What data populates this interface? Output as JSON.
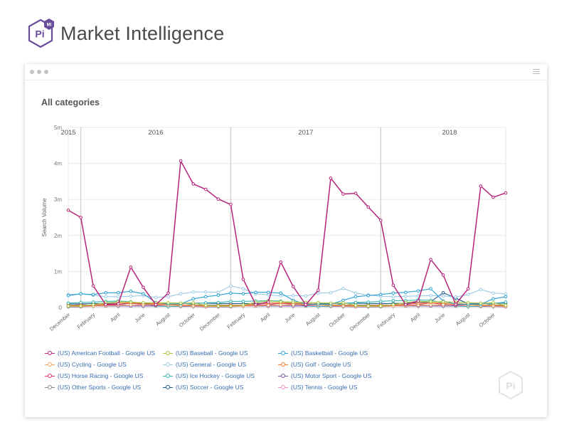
{
  "brand": {
    "logo_text": "Pi",
    "logo_badge": "MI",
    "name": "Market Intelligence"
  },
  "window": {
    "title": "All categories",
    "watermark": "Pi"
  },
  "colors": {
    "brand_purple": "#6a4c9c",
    "grid": "#e6e6e6",
    "year_line": "#cfcfcf"
  },
  "chart_data": {
    "type": "line",
    "ylabel": "Search Volume",
    "ylim": [
      0,
      5000000
    ],
    "y_ticks": [
      "0",
      "1m",
      "2m",
      "3m",
      "4m",
      "5m"
    ],
    "y_tick_values": [
      0,
      1000000,
      2000000,
      3000000,
      4000000,
      5000000
    ],
    "x": [
      "2015-12",
      "2016-01",
      "2016-02",
      "2016-03",
      "2016-04",
      "2016-05",
      "2016-06",
      "2016-07",
      "2016-08",
      "2016-09",
      "2016-10",
      "2016-11",
      "2016-12",
      "2017-01",
      "2017-02",
      "2017-03",
      "2017-04",
      "2017-05",
      "2017-06",
      "2017-07",
      "2017-08",
      "2017-09",
      "2017-10",
      "2017-11",
      "2017-12",
      "2018-01",
      "2018-02",
      "2018-03",
      "2018-04",
      "2018-05",
      "2018-06",
      "2018-07",
      "2018-08",
      "2018-09",
      "2018-10",
      "2018-11"
    ],
    "x_tick_labels": [
      {
        "label": "December",
        "index": 0
      },
      {
        "label": "February",
        "index": 2
      },
      {
        "label": "April",
        "index": 4
      },
      {
        "label": "June",
        "index": 6
      },
      {
        "label": "August",
        "index": 8
      },
      {
        "label": "October",
        "index": 10
      },
      {
        "label": "December",
        "index": 12
      },
      {
        "label": "February",
        "index": 14
      },
      {
        "label": "April",
        "index": 16
      },
      {
        "label": "June",
        "index": 18
      },
      {
        "label": "August",
        "index": 20
      },
      {
        "label": "October",
        "index": 22
      },
      {
        "label": "December",
        "index": 24
      },
      {
        "label": "February",
        "index": 26
      },
      {
        "label": "April",
        "index": 28
      },
      {
        "label": "June",
        "index": 30
      },
      {
        "label": "August",
        "index": 32
      },
      {
        "label": "October",
        "index": 34
      }
    ],
    "year_labels": [
      {
        "label": "2015",
        "index": 0
      },
      {
        "label": "2016",
        "index": 7
      },
      {
        "label": "2017",
        "index": 19
      },
      {
        "label": "2018",
        "index": 30.5
      }
    ],
    "year_boundaries": [
      1,
      13,
      25
    ],
    "series": [
      {
        "name": "(US) American Football - Google US",
        "color": "#b5247a",
        "values": [
          2700000,
          2500000,
          600000,
          80000,
          100000,
          1120000,
          560000,
          80000,
          400000,
          4070000,
          3430000,
          3280000,
          3010000,
          2860000,
          780000,
          80000,
          150000,
          1260000,
          580000,
          80000,
          480000,
          3590000,
          3150000,
          3170000,
          2790000,
          2420000,
          620000,
          80000,
          180000,
          1330000,
          900000,
          90000,
          520000,
          3370000,
          3060000,
          3180000
        ]
      },
      {
        "name": "(US) Baseball - Google US",
        "color": "#a6c43a",
        "values": [
          40000,
          40000,
          80000,
          130000,
          160000,
          150000,
          130000,
          130000,
          130000,
          120000,
          130000,
          60000,
          40000,
          40000,
          70000,
          140000,
          180000,
          160000,
          150000,
          140000,
          130000,
          120000,
          130000,
          60000,
          40000,
          40000,
          80000,
          140000,
          170000,
          160000,
          160000,
          150000,
          130000,
          120000,
          130000,
          60000
        ]
      },
      {
        "name": "(US) Basketball - Google US",
        "color": "#2a9fd0",
        "values": [
          330000,
          380000,
          360000,
          410000,
          410000,
          450000,
          380000,
          140000,
          100000,
          100000,
          240000,
          300000,
          340000,
          400000,
          380000,
          420000,
          420000,
          400000,
          200000,
          90000,
          90000,
          90000,
          200000,
          300000,
          330000,
          360000,
          400000,
          420000,
          460000,
          520000,
          180000,
          90000,
          90000,
          90000,
          240000,
          300000
        ]
      },
      {
        "name": "(US) Cycling - Google US",
        "color": "#f2a766",
        "values": [
          30000,
          30000,
          40000,
          50000,
          60000,
          70000,
          80000,
          90000,
          70000,
          50000,
          40000,
          30000,
          30000,
          30000,
          40000,
          50000,
          60000,
          70000,
          80000,
          90000,
          70000,
          50000,
          40000,
          30000,
          30000,
          30000,
          40000,
          50000,
          60000,
          70000,
          80000,
          90000,
          70000,
          50000,
          40000,
          30000
        ]
      },
      {
        "name": "(US) General - Google US",
        "color": "#9dcbe6",
        "values": [
          360000,
          380000,
          340000,
          300000,
          300000,
          310000,
          330000,
          280000,
          300000,
          380000,
          430000,
          430000,
          420000,
          600000,
          520000,
          380000,
          350000,
          320000,
          330000,
          320000,
          400000,
          410000,
          530000,
          400000,
          350000,
          310000,
          300000,
          310000,
          320000,
          330000,
          320000,
          290000,
          360000,
          500000,
          400000,
          380000
        ]
      },
      {
        "name": "(US) Golf - Google US",
        "color": "#f07a28",
        "values": [
          50000,
          60000,
          70000,
          90000,
          120000,
          130000,
          120000,
          110000,
          90000,
          70000,
          60000,
          50000,
          50000,
          60000,
          70000,
          90000,
          120000,
          130000,
          120000,
          110000,
          90000,
          70000,
          60000,
          50000,
          50000,
          60000,
          70000,
          90000,
          120000,
          130000,
          120000,
          110000,
          90000,
          70000,
          60000,
          50000
        ]
      },
      {
        "name": "(US) Horse Racing - Google US",
        "color": "#e2336a",
        "values": [
          40000,
          40000,
          50000,
          60000,
          80000,
          120000,
          90000,
          60000,
          70000,
          60000,
          50000,
          50000,
          40000,
          40000,
          50000,
          60000,
          80000,
          120000,
          90000,
          60000,
          70000,
          60000,
          50000,
          50000,
          40000,
          40000,
          50000,
          60000,
          80000,
          130000,
          90000,
          60000,
          70000,
          60000,
          50000,
          50000
        ]
      },
      {
        "name": "(US) Ice Hockey - Google US",
        "color": "#3bb5b3",
        "values": [
          120000,
          140000,
          150000,
          170000,
          180000,
          160000,
          100000,
          40000,
          30000,
          40000,
          100000,
          130000,
          140000,
          170000,
          170000,
          180000,
          190000,
          180000,
          110000,
          40000,
          30000,
          40000,
          110000,
          140000,
          150000,
          170000,
          190000,
          190000,
          210000,
          200000,
          120000,
          40000,
          30000,
          40000,
          110000,
          150000
        ]
      },
      {
        "name": "(US) Motor Sport - Google US",
        "color": "#7b5aa6",
        "values": [
          20000,
          20000,
          40000,
          40000,
          40000,
          40000,
          40000,
          40000,
          30000,
          30000,
          30000,
          20000,
          20000,
          20000,
          40000,
          40000,
          40000,
          40000,
          40000,
          40000,
          30000,
          30000,
          30000,
          20000,
          20000,
          20000,
          40000,
          40000,
          40000,
          40000,
          40000,
          40000,
          30000,
          30000,
          30000,
          20000
        ]
      },
      {
        "name": "(US) Other Sports - Google US",
        "color": "#8c8c8c",
        "values": [
          70000,
          70000,
          70000,
          70000,
          70000,
          70000,
          70000,
          70000,
          70000,
          70000,
          70000,
          70000,
          70000,
          70000,
          70000,
          70000,
          70000,
          70000,
          70000,
          70000,
          70000,
          70000,
          70000,
          70000,
          70000,
          70000,
          70000,
          70000,
          70000,
          70000,
          70000,
          70000,
          70000,
          70000,
          70000,
          70000
        ]
      },
      {
        "name": "(US) Soccer - Google US",
        "color": "#1f5c8f",
        "values": [
          100000,
          100000,
          110000,
          110000,
          120000,
          120000,
          100000,
          90000,
          90000,
          110000,
          120000,
          120000,
          110000,
          110000,
          110000,
          110000,
          120000,
          130000,
          110000,
          100000,
          100000,
          110000,
          120000,
          120000,
          110000,
          110000,
          110000,
          120000,
          130000,
          160000,
          410000,
          260000,
          100000,
          110000,
          120000,
          120000
        ]
      },
      {
        "name": "(US) Tennis - Google US",
        "color": "#ee91c8",
        "values": [
          50000,
          90000,
          50000,
          40000,
          40000,
          40000,
          60000,
          70000,
          60000,
          80000,
          50000,
          40000,
          40000,
          80000,
          50000,
          40000,
          40000,
          40000,
          60000,
          70000,
          60000,
          80000,
          50000,
          40000,
          40000,
          80000,
          50000,
          40000,
          40000,
          40000,
          60000,
          70000,
          60000,
          80000,
          50000,
          40000
        ]
      }
    ]
  }
}
